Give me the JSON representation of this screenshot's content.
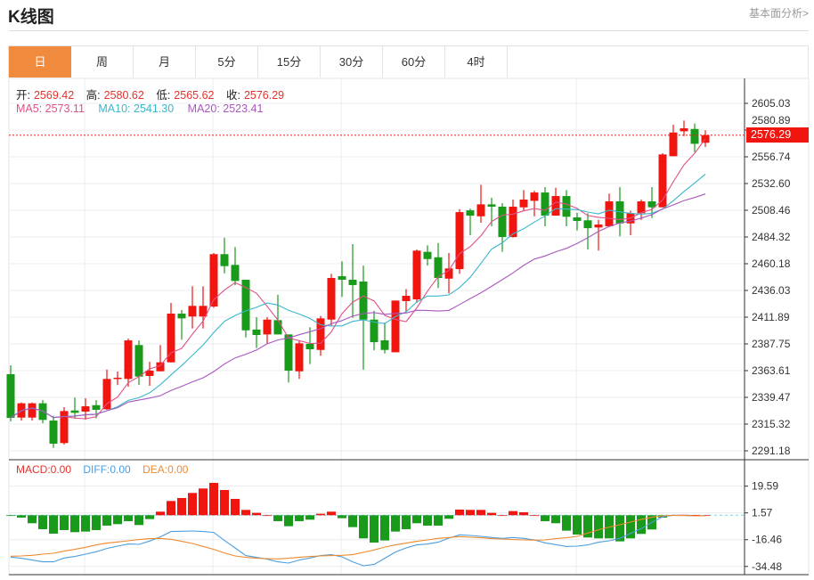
{
  "header": {
    "title": "K线图",
    "fundamental_link": "基本面分析>"
  },
  "tabs": [
    {
      "label": "日",
      "active": true
    },
    {
      "label": "周",
      "active": false
    },
    {
      "label": "月",
      "active": false
    },
    {
      "label": "5分",
      "active": false
    },
    {
      "label": "15分",
      "active": false
    },
    {
      "label": "30分",
      "active": false
    },
    {
      "label": "60分",
      "active": false
    },
    {
      "label": "4时",
      "active": false
    }
  ],
  "ohlc_info": {
    "open_label": "开:",
    "open": "2569.42",
    "high_label": "高:",
    "high": "2580.62",
    "low_label": "低:",
    "low": "2565.62",
    "close_label": "收:",
    "close": "2576.29"
  },
  "ma_info": {
    "ma5": "MA5: 2573.11",
    "ma10": "MA10: 2541.30",
    "ma20": "MA20: 2523.41"
  },
  "macd_info": {
    "macd": "MACD:0.00",
    "diff": "DIFF:0.00",
    "dea": "DEA:0.00"
  },
  "current_price": "2576.29",
  "colors": {
    "up": "#f0150f",
    "down": "#1a9a1a",
    "ma5": "#e0508a",
    "ma10": "#3ab7cc",
    "ma20": "#a958be",
    "diff": "#4a9ee0",
    "dea": "#f08a30",
    "accent": "#f08a3c"
  },
  "chart_data": [
    {
      "type": "candlestick",
      "price_axis_ticks": [
        "2605.03",
        "2580.89",
        "2556.74",
        "2532.60",
        "2508.46",
        "2484.32",
        "2460.18",
        "2436.03",
        "2411.89",
        "2387.75",
        "2363.61",
        "2339.47",
        "2315.32",
        "2291.18"
      ],
      "ylim": [
        2291.18,
        2605.03
      ],
      "grid": true,
      "ohlc": [
        [
          2360.4,
          2368.4,
          2317.7,
          2320.9
        ],
        [
          2321.2,
          2334.9,
          2318.5,
          2334.1
        ],
        [
          2321.2,
          2334.9,
          2318.5,
          2334.1
        ],
        [
          2334.1,
          2337.0,
          2316.1,
          2319.1
        ],
        [
          2318.5,
          2322.8,
          2293.8,
          2297.6
        ],
        [
          2298.2,
          2330.6,
          2296.8,
          2327.1
        ],
        [
          2327.6,
          2339.4,
          2320.6,
          2325.5
        ],
        [
          2326.6,
          2338.6,
          2319.4,
          2331.4
        ],
        [
          2332.4,
          2337.0,
          2320.6,
          2328.2
        ],
        [
          2328.7,
          2364.6,
          2328.2,
          2356.1
        ],
        [
          2356.1,
          2362.8,
          2350.7,
          2357.2
        ],
        [
          2356.1,
          2392.6,
          2349.1,
          2390.9
        ],
        [
          2386.7,
          2390.9,
          2350.7,
          2358.2
        ],
        [
          2358.8,
          2371.6,
          2349.9,
          2363.6
        ],
        [
          2363.0,
          2386.7,
          2363.0,
          2371.1
        ],
        [
          2371.1,
          2424.7,
          2371.1,
          2415.1
        ],
        [
          2415.1,
          2418.3,
          2391.5,
          2410.8
        ],
        [
          2412.5,
          2439.8,
          2401.7,
          2422.1
        ],
        [
          2412.5,
          2439.8,
          2401.7,
          2422.1
        ],
        [
          2421.5,
          2469.8,
          2420.5,
          2468.8
        ],
        [
          2468.8,
          2483.7,
          2451.5,
          2458.0
        ],
        [
          2459.1,
          2475.2,
          2440.8,
          2444.6
        ],
        [
          2445.7,
          2445.7,
          2393.6,
          2400.0
        ],
        [
          2400.7,
          2411.9,
          2384.0,
          2395.8
        ],
        [
          2396.3,
          2411.9,
          2387.7,
          2409.7
        ],
        [
          2409.2,
          2432.2,
          2396.3,
          2396.3
        ],
        [
          2396.3,
          2396.3,
          2352.9,
          2363.6
        ],
        [
          2363.0,
          2390.4,
          2356.1,
          2388.3
        ],
        [
          2387.8,
          2402.8,
          2369.5,
          2382.9
        ],
        [
          2382.3,
          2413.0,
          2377.0,
          2410.8
        ],
        [
          2409.7,
          2451.1,
          2404.4,
          2447.3
        ],
        [
          2448.9,
          2462.3,
          2430.1,
          2445.7
        ],
        [
          2445.7,
          2477.9,
          2411.3,
          2440.9
        ],
        [
          2444.1,
          2458.5,
          2364.4,
          2409.7
        ],
        [
          2409.7,
          2417.7,
          2381.9,
          2389.3
        ],
        [
          2391.0,
          2407.0,
          2379.1,
          2382.3
        ],
        [
          2380.2,
          2426.9,
          2380.2,
          2426.9
        ],
        [
          2426.4,
          2437.1,
          2416.7,
          2431.2
        ],
        [
          2428.0,
          2473.0,
          2424.8,
          2472.0
        ],
        [
          2470.9,
          2476.8,
          2458.5,
          2464.4
        ],
        [
          2466.0,
          2478.9,
          2438.2,
          2447.3
        ],
        [
          2446.7,
          2469.8,
          2433.4,
          2455.9
        ],
        [
          2455.3,
          2509.5,
          2451.1,
          2506.8
        ],
        [
          2508.4,
          2510.0,
          2485.9,
          2503.6
        ],
        [
          2503.0,
          2531.5,
          2497.2,
          2513.8
        ],
        [
          2513.8,
          2519.7,
          2494.0,
          2511.7
        ],
        [
          2511.7,
          2514.9,
          2470.9,
          2484.3
        ],
        [
          2484.3,
          2518.1,
          2483.8,
          2511.7
        ],
        [
          2511.1,
          2526.7,
          2508.4,
          2518.1
        ],
        [
          2517.0,
          2526.1,
          2503.0,
          2524.5
        ],
        [
          2524.5,
          2529.4,
          2494.0,
          2503.6
        ],
        [
          2503.6,
          2528.8,
          2503.6,
          2521.3
        ],
        [
          2521.3,
          2526.7,
          2494.0,
          2502.6
        ],
        [
          2502.0,
          2506.3,
          2490.2,
          2498.8
        ],
        [
          2499.4,
          2505.8,
          2473.0,
          2492.3
        ],
        [
          2492.9,
          2499.8,
          2472.0,
          2495.6
        ],
        [
          2494.0,
          2523.5,
          2494.0,
          2516.5
        ],
        [
          2516.5,
          2529.4,
          2484.9,
          2496.6
        ],
        [
          2496.6,
          2508.0,
          2485.9,
          2505.8
        ],
        [
          2505.8,
          2518.1,
          2499.8,
          2516.5
        ],
        [
          2516.5,
          2529.4,
          2501.5,
          2511.1
        ],
        [
          2511.1,
          2560.0,
          2511.1,
          2558.9
        ],
        [
          2557.3,
          2585.7,
          2557.3,
          2578.7
        ],
        [
          2579.8,
          2589.5,
          2575.5,
          2582.5
        ],
        [
          2581.9,
          2586.8,
          2561.0,
          2568.5
        ],
        [
          2569.42,
          2580.62,
          2565.62,
          2576.29
        ]
      ]
    },
    {
      "type": "bar+line",
      "axis_ticks": [
        "19.59",
        "1.57",
        "-16.46",
        "-34.48"
      ],
      "macd": [
        -0.3,
        -1.6,
        -5.4,
        -9.4,
        -12.4,
        -10.0,
        -11.4,
        -11.0,
        -10.0,
        -7.0,
        -6.0,
        -4.0,
        -6.6,
        -2.6,
        2.4,
        9.6,
        11.6,
        15.0,
        18.0,
        21.8,
        17.0,
        11.0,
        3.6,
        1.6,
        0,
        -4.0,
        -7.4,
        -4.0,
        -3.0,
        1.0,
        2.4,
        -2.0,
        -8.0,
        -15.6,
        -18.4,
        -17.0,
        -11.0,
        -9.4,
        -5.4,
        -7.0,
        -7.0,
        -2.4,
        3.8,
        3.6,
        3.6,
        1.6,
        0,
        2.8,
        2.0,
        0,
        -4.0,
        -5.4,
        -10.4,
        -13.0,
        -15.0,
        -15.6,
        -15.6,
        -17.6,
        -15.6,
        -12.6,
        -9.6,
        -1.6,
        0.2,
        0.3,
        0.2,
        0
      ],
      "diff": [
        -28.2,
        -29,
        -30.2,
        -31.4,
        -31.4,
        -28.8,
        -27.8,
        -26.2,
        -24.6,
        -22.4,
        -20.8,
        -19.4,
        -19.6,
        -17.4,
        -14.6,
        -11,
        -10.8,
        -10.6,
        -11,
        -11.6,
        -17,
        -22,
        -27.2,
        -28.4,
        -29.6,
        -31.4,
        -32.2,
        -30.2,
        -28.8,
        -27.2,
        -26.6,
        -28,
        -31.4,
        -34,
        -33.2,
        -29,
        -24.8,
        -22,
        -20,
        -19.4,
        -18.2,
        -15.4,
        -13.2,
        -13.6,
        -14.2,
        -15,
        -15.6,
        -15,
        -15.6,
        -16.6,
        -18.6,
        -19.8,
        -21,
        -20.8,
        -20,
        -18.2,
        -17.2,
        -15.6,
        -12.2,
        -9,
        -4.8,
        -1,
        0,
        -0.2,
        -0.4,
        -0.4
      ],
      "dea": [
        -27.6,
        -27.4,
        -27,
        -26.2,
        -25.6,
        -24.2,
        -23,
        -21.6,
        -20,
        -18.8,
        -18,
        -17.2,
        -16.4,
        -15.8,
        -15.6,
        -16.2,
        -17.6,
        -19,
        -21,
        -23,
        -25.4,
        -27.4,
        -28.4,
        -29,
        -29.2,
        -29.4,
        -29,
        -28.4,
        -27.8,
        -27.4,
        -27.2,
        -27,
        -26.6,
        -25,
        -23.4,
        -21.4,
        -20,
        -18.8,
        -17.6,
        -16.6,
        -15.6,
        -15,
        -14.4,
        -14.8,
        -15.2,
        -15.8,
        -16,
        -16.4,
        -16.6,
        -16.8,
        -16.6,
        -15.8,
        -15.2,
        -14.2,
        -12,
        -9.8,
        -8,
        -6.4,
        -4.6,
        -2.8,
        -1.4,
        -0.4,
        -0.2,
        -0.2,
        -0.4,
        -0.4
      ]
    }
  ]
}
